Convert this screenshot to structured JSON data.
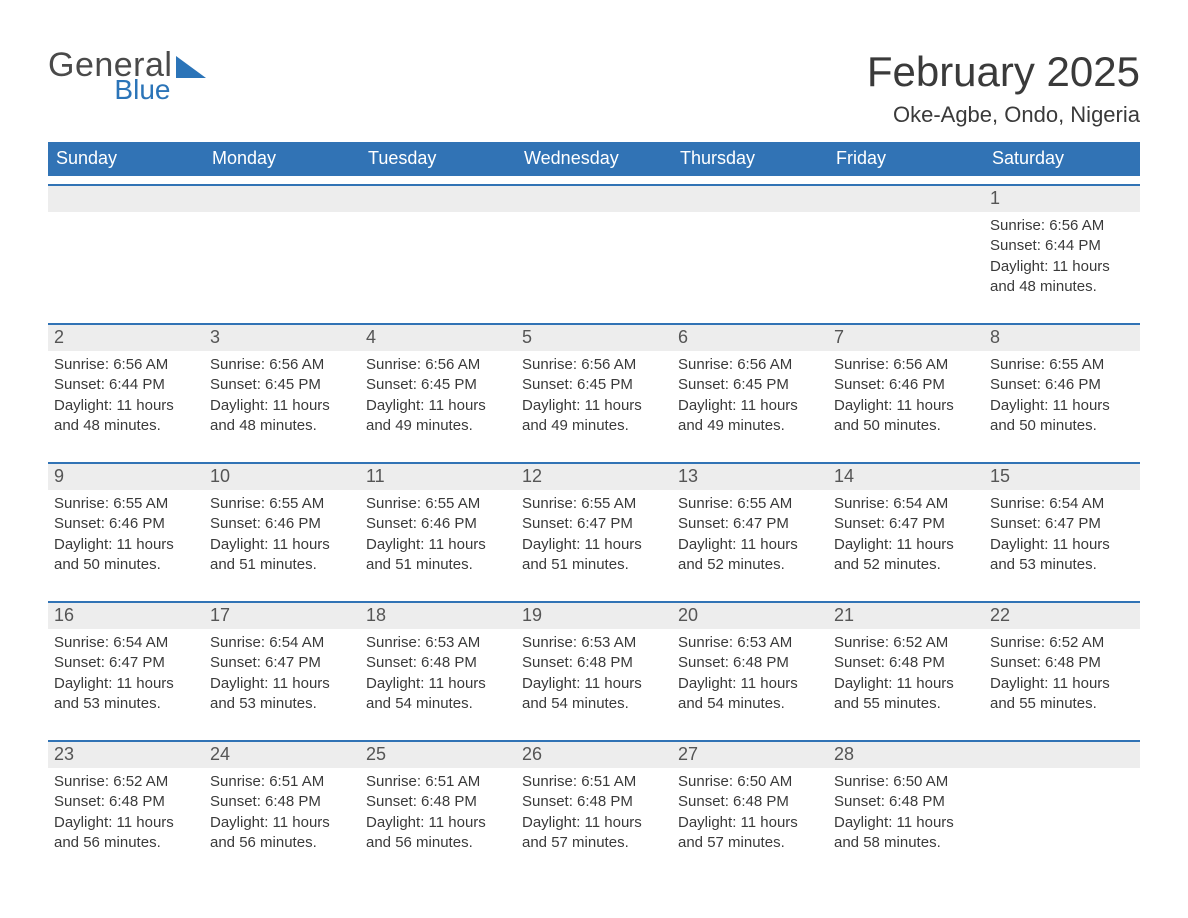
{
  "brand": {
    "general": "General",
    "blue": "Blue",
    "accent_color": "#2b74b8"
  },
  "title": "February 2025",
  "location": "Oke-Agbe, Ondo, Nigeria",
  "colors": {
    "header_bg": "#3173b5",
    "header_text": "#ffffff",
    "daynum_bg": "#ededed",
    "daynum_border": "#3173b5",
    "text": "#3a3a3a",
    "page_bg": "#ffffff"
  },
  "weekdays": [
    "Sunday",
    "Monday",
    "Tuesday",
    "Wednesday",
    "Thursday",
    "Friday",
    "Saturday"
  ],
  "weeks": [
    [
      null,
      null,
      null,
      null,
      null,
      null,
      {
        "day": 1,
        "sunrise": "6:56 AM",
        "sunset": "6:44 PM",
        "daylight": "11 hours and 48 minutes."
      }
    ],
    [
      {
        "day": 2,
        "sunrise": "6:56 AM",
        "sunset": "6:44 PM",
        "daylight": "11 hours and 48 minutes."
      },
      {
        "day": 3,
        "sunrise": "6:56 AM",
        "sunset": "6:45 PM",
        "daylight": "11 hours and 48 minutes."
      },
      {
        "day": 4,
        "sunrise": "6:56 AM",
        "sunset": "6:45 PM",
        "daylight": "11 hours and 49 minutes."
      },
      {
        "day": 5,
        "sunrise": "6:56 AM",
        "sunset": "6:45 PM",
        "daylight": "11 hours and 49 minutes."
      },
      {
        "day": 6,
        "sunrise": "6:56 AM",
        "sunset": "6:45 PM",
        "daylight": "11 hours and 49 minutes."
      },
      {
        "day": 7,
        "sunrise": "6:56 AM",
        "sunset": "6:46 PM",
        "daylight": "11 hours and 50 minutes."
      },
      {
        "day": 8,
        "sunrise": "6:55 AM",
        "sunset": "6:46 PM",
        "daylight": "11 hours and 50 minutes."
      }
    ],
    [
      {
        "day": 9,
        "sunrise": "6:55 AM",
        "sunset": "6:46 PM",
        "daylight": "11 hours and 50 minutes."
      },
      {
        "day": 10,
        "sunrise": "6:55 AM",
        "sunset": "6:46 PM",
        "daylight": "11 hours and 51 minutes."
      },
      {
        "day": 11,
        "sunrise": "6:55 AM",
        "sunset": "6:46 PM",
        "daylight": "11 hours and 51 minutes."
      },
      {
        "day": 12,
        "sunrise": "6:55 AM",
        "sunset": "6:47 PM",
        "daylight": "11 hours and 51 minutes."
      },
      {
        "day": 13,
        "sunrise": "6:55 AM",
        "sunset": "6:47 PM",
        "daylight": "11 hours and 52 minutes."
      },
      {
        "day": 14,
        "sunrise": "6:54 AM",
        "sunset": "6:47 PM",
        "daylight": "11 hours and 52 minutes."
      },
      {
        "day": 15,
        "sunrise": "6:54 AM",
        "sunset": "6:47 PM",
        "daylight": "11 hours and 53 minutes."
      }
    ],
    [
      {
        "day": 16,
        "sunrise": "6:54 AM",
        "sunset": "6:47 PM",
        "daylight": "11 hours and 53 minutes."
      },
      {
        "day": 17,
        "sunrise": "6:54 AM",
        "sunset": "6:47 PM",
        "daylight": "11 hours and 53 minutes."
      },
      {
        "day": 18,
        "sunrise": "6:53 AM",
        "sunset": "6:48 PM",
        "daylight": "11 hours and 54 minutes."
      },
      {
        "day": 19,
        "sunrise": "6:53 AM",
        "sunset": "6:48 PM",
        "daylight": "11 hours and 54 minutes."
      },
      {
        "day": 20,
        "sunrise": "6:53 AM",
        "sunset": "6:48 PM",
        "daylight": "11 hours and 54 minutes."
      },
      {
        "day": 21,
        "sunrise": "6:52 AM",
        "sunset": "6:48 PM",
        "daylight": "11 hours and 55 minutes."
      },
      {
        "day": 22,
        "sunrise": "6:52 AM",
        "sunset": "6:48 PM",
        "daylight": "11 hours and 55 minutes."
      }
    ],
    [
      {
        "day": 23,
        "sunrise": "6:52 AM",
        "sunset": "6:48 PM",
        "daylight": "11 hours and 56 minutes."
      },
      {
        "day": 24,
        "sunrise": "6:51 AM",
        "sunset": "6:48 PM",
        "daylight": "11 hours and 56 minutes."
      },
      {
        "day": 25,
        "sunrise": "6:51 AM",
        "sunset": "6:48 PM",
        "daylight": "11 hours and 56 minutes."
      },
      {
        "day": 26,
        "sunrise": "6:51 AM",
        "sunset": "6:48 PM",
        "daylight": "11 hours and 57 minutes."
      },
      {
        "day": 27,
        "sunrise": "6:50 AM",
        "sunset": "6:48 PM",
        "daylight": "11 hours and 57 minutes."
      },
      {
        "day": 28,
        "sunrise": "6:50 AM",
        "sunset": "6:48 PM",
        "daylight": "11 hours and 58 minutes."
      },
      null
    ]
  ],
  "labels": {
    "sunrise": "Sunrise: ",
    "sunset": "Sunset: ",
    "daylight": "Daylight: "
  }
}
